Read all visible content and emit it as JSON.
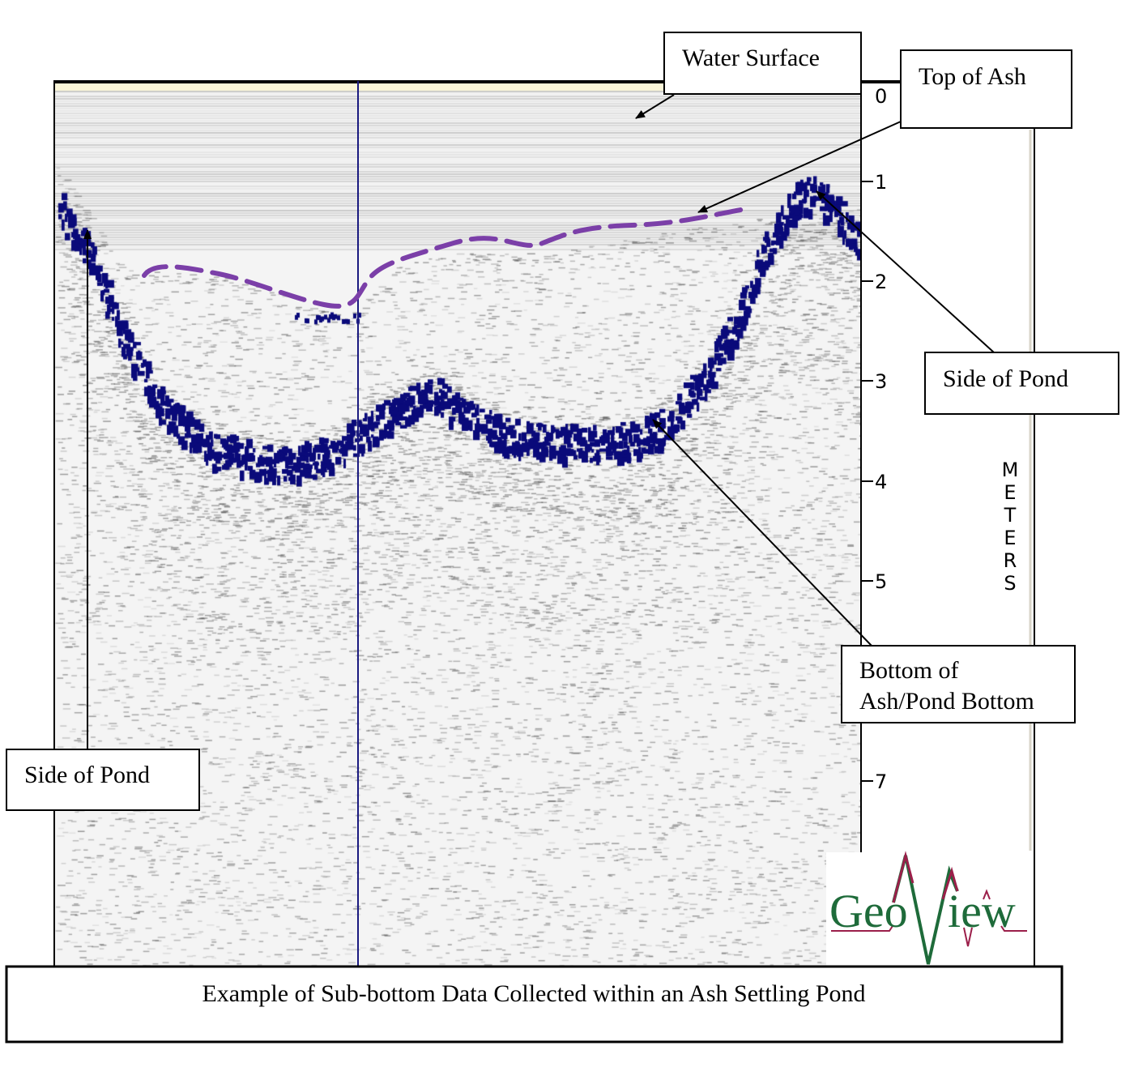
{
  "labels": {
    "water_surface": "Water Surface",
    "top_of_ash": "Top of Ash",
    "side_of_pond_right": "Side of Pond",
    "side_of_pond_left": "Side of Pond",
    "bottom_of_ash_line1": "Bottom of",
    "bottom_of_ash_line2": "Ash/Pond Bottom"
  },
  "caption": "Example of Sub-bottom Data Collected within an Ash Settling Pond",
  "depth_axis": {
    "unit_label": "METERS",
    "ticks": [
      "0",
      "1",
      "2",
      "3",
      "4",
      "5",
      "7"
    ]
  },
  "logo": {
    "text": "GeoView",
    "colors": {
      "text": "#1e6b3a",
      "accent": "#9b1f4a"
    }
  },
  "colors": {
    "reflector": "#0a0a7a",
    "top_of_ash_line": "#7b3fa8",
    "marker_line": "#1a1a80"
  }
}
